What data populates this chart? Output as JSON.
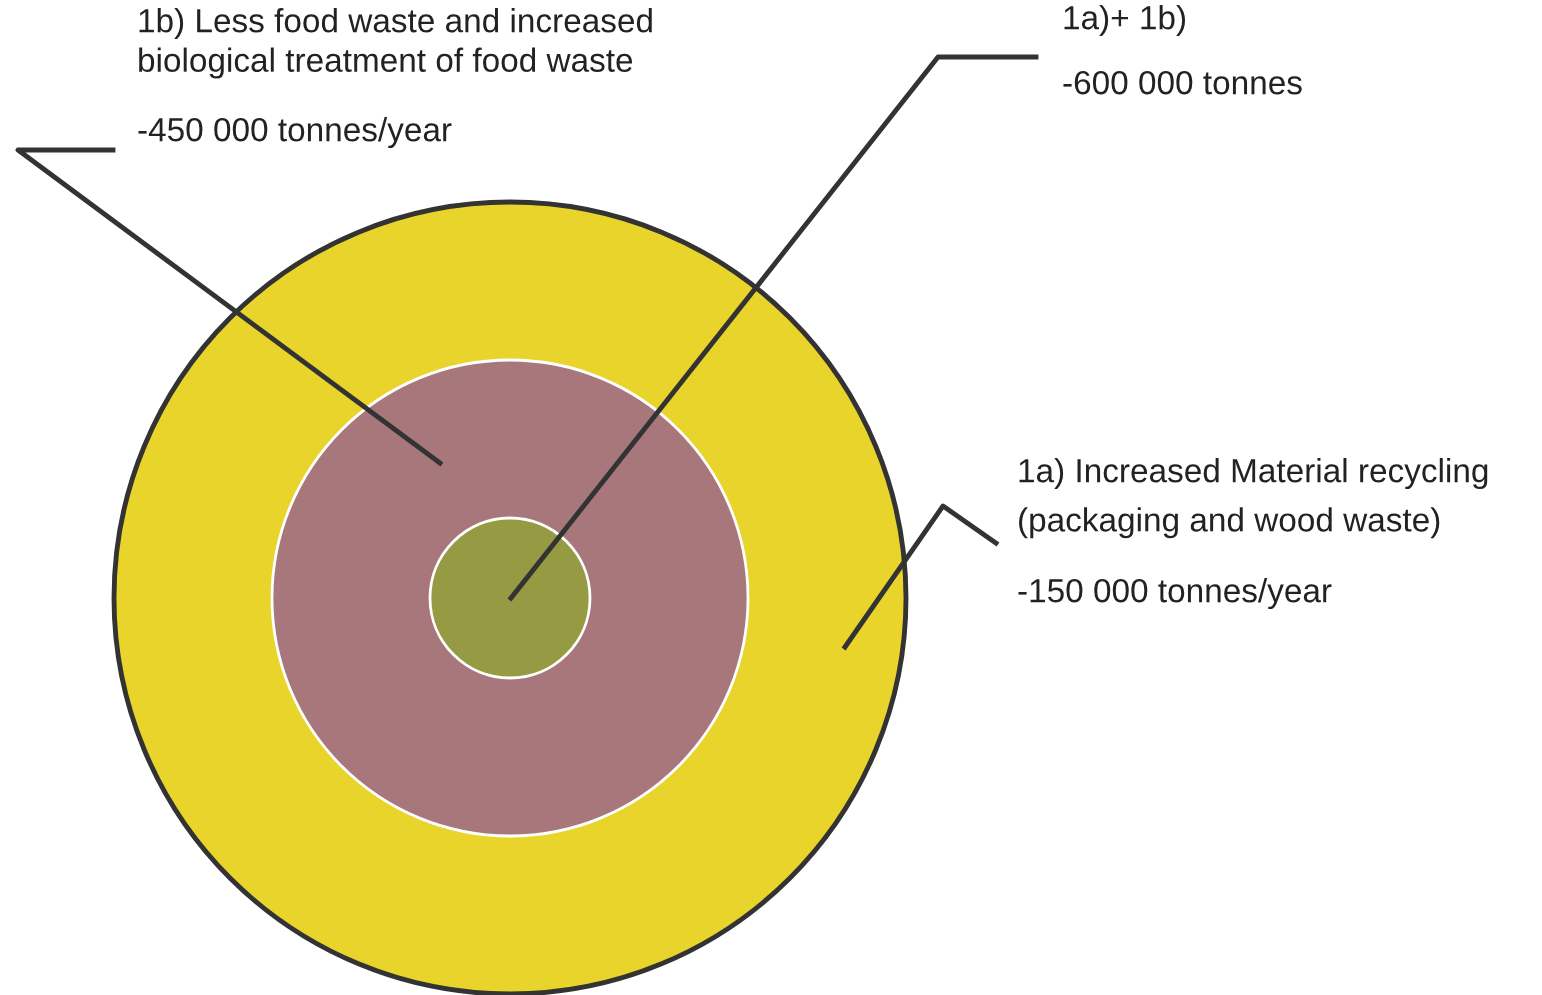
{
  "chart_data": {
    "type": "other",
    "categories": [
      "1a) Increased Material recycling\n(packaging and wood waste)",
      "1b) Less food waste and increased\nbiological treatment of food waste",
      "1a)+ 1b)"
    ],
    "values": [
      -150000,
      -450000,
      -600000
    ],
    "value_labels": [
      "-150 000 tonnes/year",
      "-450 000 tonnes/year",
      "-600 000 tonnes"
    ],
    "colors": [
      "#e8d42a",
      "#a8777c",
      "#969a42"
    ]
  }
}
